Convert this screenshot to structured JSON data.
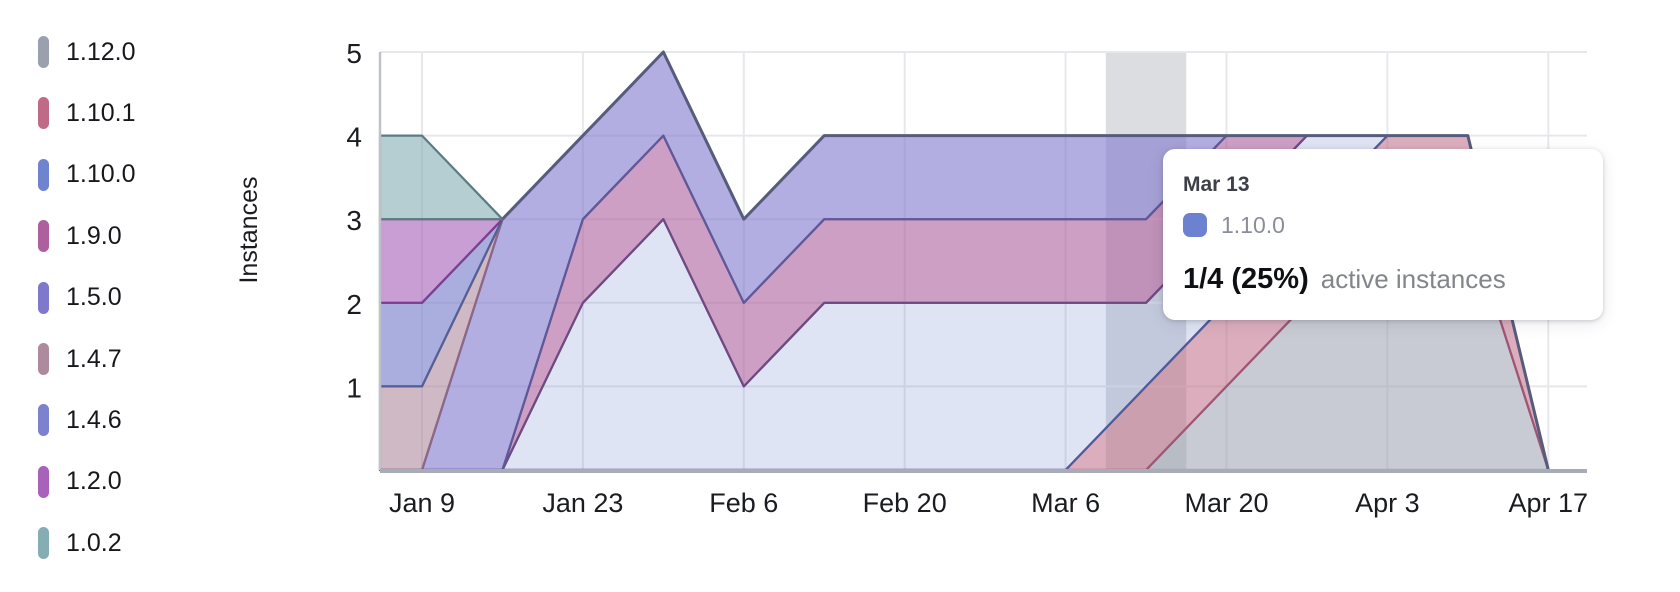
{
  "chart_data": {
    "type": "area",
    "stacked": true,
    "title": "",
    "xlabel": "",
    "ylabel": "Instances",
    "ylim": [
      0,
      5
    ],
    "y_ticks": [
      1,
      2,
      3,
      4,
      5
    ],
    "grid": true,
    "legend_position": "left",
    "x_tick_labels": [
      "Jan 9",
      "Jan 23",
      "Feb 6",
      "Feb 20",
      "Mar 6",
      "Mar 20",
      "Apr 3",
      "Apr 17"
    ],
    "x": [
      "",
      "Jan 9",
      "Jan 16",
      "Jan 23",
      "Jan 30",
      "Feb 6",
      "Feb 13",
      "Feb 20",
      "Feb 27",
      "Mar 6",
      "Mar 13",
      "Mar 20",
      "Mar 27",
      "Apr 3",
      "Apr 10",
      "Apr 17"
    ],
    "series": [
      {
        "name": "1.12.0",
        "color": "#9aa0ae",
        "line": "#83899c",
        "fill": "rgba(154,160,174,0.55)",
        "values": [
          0,
          0,
          0,
          0,
          0,
          0,
          0,
          0,
          0,
          0,
          0,
          1,
          2,
          3,
          3,
          0
        ]
      },
      {
        "name": "1.10.1",
        "color": "#bf6b87",
        "line": "#9e5673",
        "fill": "rgba(191,107,135,0.55)",
        "values": [
          0,
          0,
          0,
          0,
          0,
          0,
          0,
          0,
          0,
          0,
          1,
          1,
          1,
          1,
          1,
          0
        ]
      },
      {
        "name": "1.10.0",
        "color": "#6e84ce",
        "line": "#4c5c9e",
        "fill": "rgba(110,132,206,0.22)",
        "values": [
          0,
          0,
          0,
          2,
          3,
          1,
          2,
          2,
          2,
          2,
          1,
          1,
          1,
          0,
          0,
          0
        ]
      },
      {
        "name": "1.9.0",
        "color": "#ae5f9e",
        "line": "#6f4a80",
        "fill": "rgba(174,95,158,0.60)",
        "values": [
          0,
          0,
          0,
          1,
          1,
          1,
          1,
          1,
          1,
          1,
          1,
          1,
          0,
          0,
          0,
          0
        ]
      },
      {
        "name": "1.5.0",
        "color": "#8078cd",
        "line": "#5f5899",
        "fill": "rgba(128,120,205,0.60)",
        "values": [
          0,
          0,
          3,
          1,
          1,
          1,
          1,
          1,
          1,
          1,
          1,
          0,
          0,
          0,
          0,
          0
        ]
      },
      {
        "name": "1.4.7",
        "color": "#ad8a9e",
        "line": "#8c6886",
        "fill": "rgba(173,138,158,0.60)",
        "values": [
          1,
          1,
          0,
          0,
          0,
          0,
          0,
          0,
          0,
          0,
          0,
          0,
          0,
          0,
          0,
          0
        ]
      },
      {
        "name": "1.4.6",
        "color": "#7c82cd",
        "line": "#555f95",
        "fill": "rgba(124,130,205,0.65)",
        "values": [
          1,
          1,
          0,
          0,
          0,
          0,
          0,
          0,
          0,
          0,
          0,
          0,
          0,
          0,
          0,
          0
        ]
      },
      {
        "name": "1.2.0",
        "color": "#a862ba",
        "line": "#7d3f92",
        "fill": "rgba(168,98,186,0.62)",
        "values": [
          1,
          1,
          0,
          0,
          0,
          0,
          0,
          0,
          0,
          0,
          0,
          0,
          0,
          0,
          0,
          0
        ]
      },
      {
        "name": "1.0.2",
        "color": "#84adb4",
        "line": "#5b7d82",
        "fill": "rgba(132,173,180,0.60)",
        "values": [
          1,
          1,
          0,
          0,
          0,
          0,
          0,
          0,
          0,
          0,
          0,
          0,
          0,
          0,
          0,
          0
        ]
      }
    ],
    "totals": [
      4,
      4,
      3,
      4,
      5,
      3,
      4,
      4,
      4,
      4,
      4,
      4,
      4,
      4,
      4,
      0
    ],
    "highlight_x": "Mar 13",
    "highlight_color": "#dcdde0",
    "total_line_color": "#575c7d",
    "gridline_color": "#e7e8eb",
    "axis_line_color": "#bfc2c7",
    "baseline_color": "#a7acb5"
  },
  "tooltip": {
    "date": "Mar 13",
    "series": "1.10.0",
    "swatch_color": "#6c81cf",
    "value": "1/4 (25%)",
    "suffix": "active instances"
  }
}
